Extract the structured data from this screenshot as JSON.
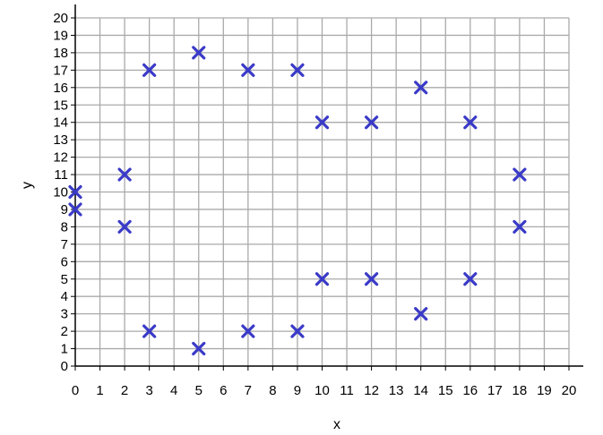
{
  "chart_data": {
    "type": "scatter",
    "title": "",
    "xlabel": "x",
    "ylabel": "y",
    "xlim": [
      0,
      20
    ],
    "ylim": [
      0,
      20
    ],
    "xticks": [
      0,
      1,
      2,
      3,
      4,
      5,
      6,
      7,
      8,
      9,
      10,
      11,
      12,
      13,
      14,
      15,
      16,
      17,
      18,
      19,
      20
    ],
    "yticks": [
      0,
      1,
      2,
      3,
      4,
      5,
      6,
      7,
      8,
      9,
      10,
      11,
      12,
      13,
      14,
      15,
      16,
      17,
      18,
      19,
      20
    ],
    "grid": true,
    "marker": "x",
    "marker_color": "#3a3ac8",
    "grid_color": "#aaaaaa",
    "points": [
      [
        0,
        10
      ],
      [
        0,
        9
      ],
      [
        2,
        11
      ],
      [
        2,
        8
      ],
      [
        3,
        17
      ],
      [
        3,
        2
      ],
      [
        5,
        18
      ],
      [
        5,
        1
      ],
      [
        7,
        17
      ],
      [
        7,
        2
      ],
      [
        9,
        17
      ],
      [
        9,
        2
      ],
      [
        10,
        14
      ],
      [
        10,
        5
      ],
      [
        12,
        14
      ],
      [
        12,
        5
      ],
      [
        14,
        16
      ],
      [
        14,
        3
      ],
      [
        16,
        14
      ],
      [
        16,
        5
      ],
      [
        18,
        11
      ],
      [
        18,
        8
      ]
    ]
  }
}
